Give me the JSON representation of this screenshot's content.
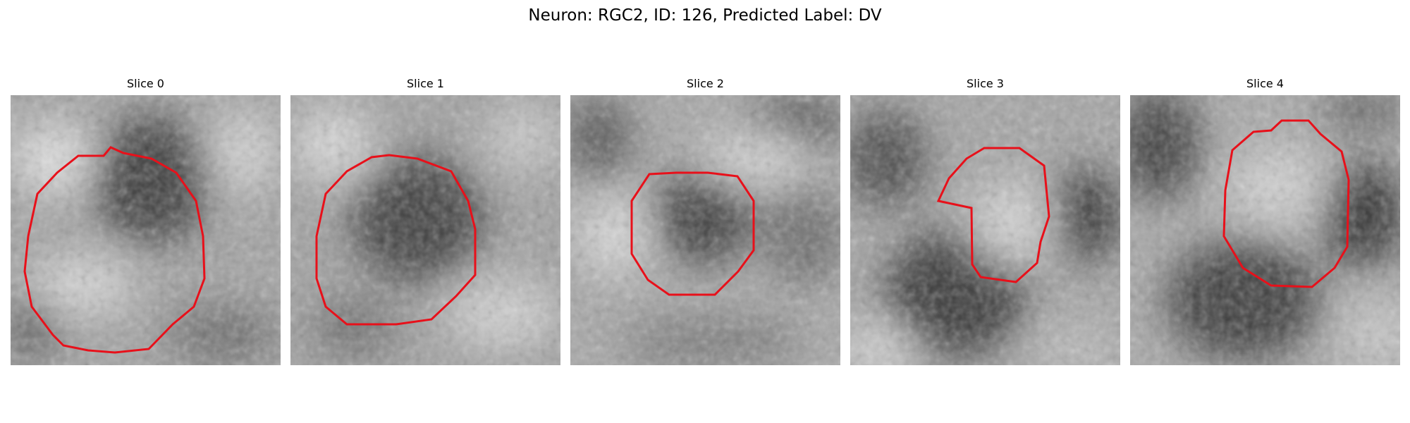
{
  "figure": {
    "title": "Neuron: RGC2, ID: 126, Predicted Label: DV"
  },
  "panels": [
    {
      "title": "Slice 0"
    },
    {
      "title": "Slice 1"
    },
    {
      "title": "Slice 2"
    },
    {
      "title": "Slice 3"
    },
    {
      "title": "Slice 4"
    }
  ],
  "colors": {
    "contour": "#e8101a",
    "background": "#ffffff"
  }
}
